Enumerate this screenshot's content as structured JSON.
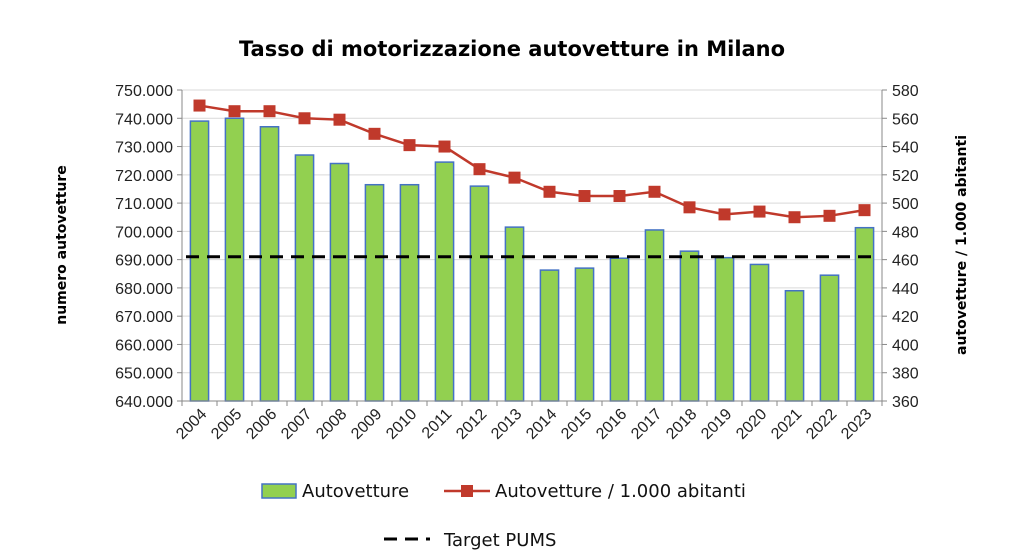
{
  "chart_data": {
    "type": "bar",
    "title": "Tasso di motorizzazione autovetture in Milano",
    "categories": [
      "2004",
      "2005",
      "2006",
      "2007",
      "2008",
      "2009",
      "2010",
      "2011",
      "2012",
      "2013",
      "2014",
      "2015",
      "2016",
      "2017",
      "2018",
      "2019",
      "2020",
      "2021",
      "2022",
      "2023"
    ],
    "y_left": {
      "label": "numero autovetture",
      "ylim": [
        640000,
        750000
      ],
      "ticks": [
        "640.000",
        "650.000",
        "660.000",
        "670.000",
        "680.000",
        "690.000",
        "700.000",
        "710.000",
        "720.000",
        "730.000",
        "740.000",
        "750.000"
      ]
    },
    "y_right": {
      "label": "autovetture / 1.000 abitanti",
      "ylim": [
        360,
        580
      ],
      "ticks": [
        "360",
        "380",
        "400",
        "420",
        "440",
        "460",
        "480",
        "500",
        "520",
        "540",
        "560",
        "580"
      ]
    },
    "series": [
      {
        "name": "Autovetture",
        "kind": "bar",
        "axis": "left",
        "color": "#92D050",
        "edge": "#4472C4",
        "values": [
          739000,
          740000,
          737000,
          727000,
          724000,
          716500,
          716500,
          724500,
          716000,
          701500,
          686300,
          687000,
          690500,
          700500,
          693000,
          690700,
          688300,
          679000,
          684500,
          701300
        ]
      },
      {
        "name": "Autovetture / 1.000 abitanti",
        "kind": "line",
        "axis": "right",
        "color": "#C0392B",
        "values": [
          569,
          565,
          565,
          560,
          559,
          549,
          541,
          540,
          524,
          518,
          508,
          505,
          505,
          508,
          497,
          492,
          494,
          490,
          491,
          495
        ]
      },
      {
        "name": "Target PUMS",
        "kind": "hline",
        "axis": "left",
        "color": "#000000",
        "value": 691000
      }
    ],
    "grid": true,
    "legend": "bottom"
  }
}
